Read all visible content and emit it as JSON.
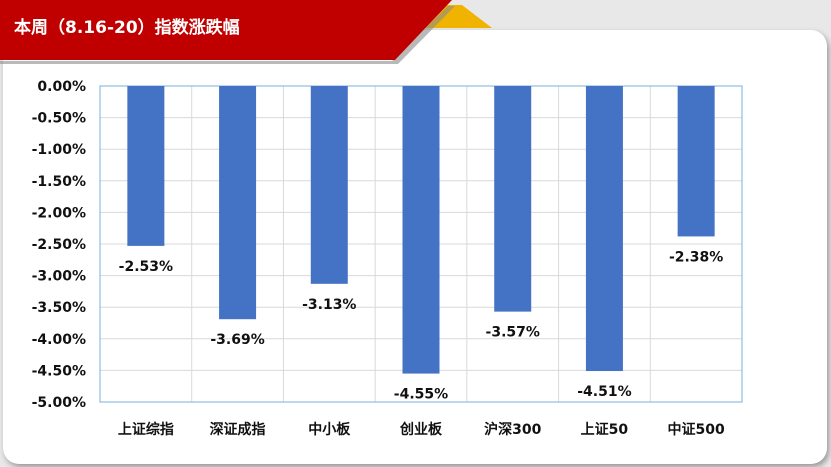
{
  "header": {
    "title": "本周（8.16-20）指数涨跌幅"
  },
  "colors": {
    "banner": "#c00000",
    "accent": "#f0b400",
    "bar": "#4472c4"
  },
  "chart_data": {
    "type": "bar",
    "title": "",
    "xlabel": "",
    "ylabel": "",
    "categories": [
      "上证综指",
      "深证成指",
      "中小板",
      "创业板",
      "沪深300",
      "上证50",
      "中证500"
    ],
    "values": [
      -2.53,
      -3.69,
      -3.13,
      -4.55,
      -3.57,
      -4.51,
      -2.38
    ],
    "data_labels": [
      "-2.53%",
      "-3.69%",
      "-3.13%",
      "-4.55%",
      "-3.57%",
      "-4.51%",
      "-2.38%"
    ],
    "ylim": [
      -5.0,
      0.0
    ],
    "yticks": [
      0.0,
      -0.5,
      -1.0,
      -1.5,
      -2.0,
      -2.5,
      -3.0,
      -3.5,
      -4.0,
      -4.5,
      -5.0
    ],
    "ytick_labels": [
      "0.00%",
      "-0.50%",
      "-1.00%",
      "-1.50%",
      "-2.00%",
      "-2.50%",
      "-3.00%",
      "-3.50%",
      "-4.00%",
      "-4.50%",
      "-5.00%"
    ],
    "grid": true,
    "legend": "none"
  }
}
